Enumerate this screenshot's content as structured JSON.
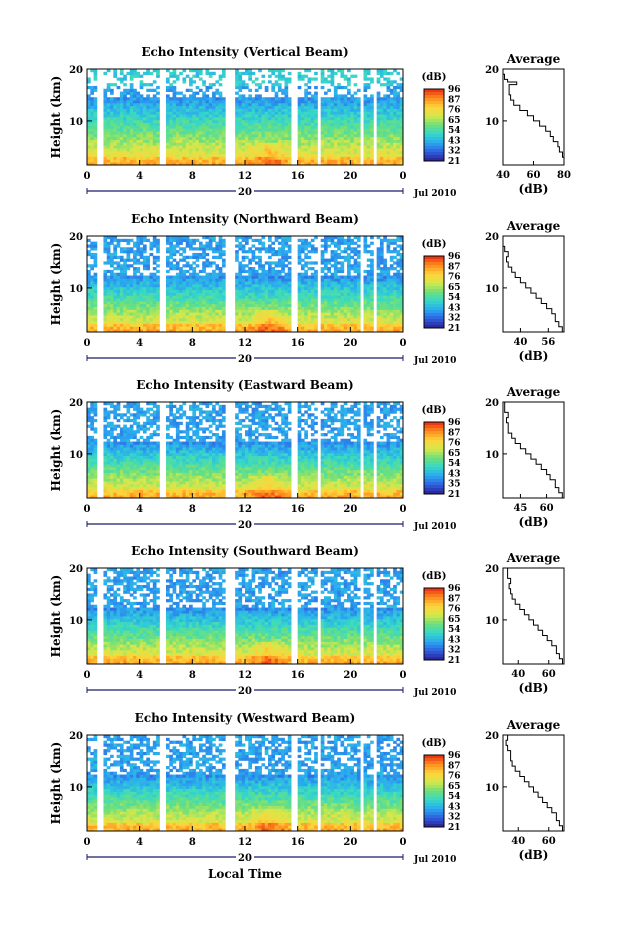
{
  "figure": {
    "xlabel": "Local Time",
    "ylabel": "Height (km)",
    "date_label": "Jul 2010",
    "day_label": "20",
    "colorbar_unit": "(dB)",
    "avg_title": "Average",
    "avg_xlabel": "(dB)",
    "colors": {
      "colormap": [
        "#2b1f8f",
        "#2f5fe0",
        "#2aa8f0",
        "#36d8c8",
        "#6fe07a",
        "#d6e84a",
        "#ffd23a",
        "#ff8a1c",
        "#e62a14"
      ]
    }
  },
  "chart_data": [
    {
      "type": "heatmap",
      "title": "Echo Intensity (Vertical Beam)",
      "xlabel": "Local Time",
      "ylabel": "Height (km)",
      "xlim": [
        0,
        24
      ],
      "ylim": [
        1.5,
        20
      ],
      "x_ticks": [
        "0",
        "4",
        "8",
        "12",
        "16",
        "20",
        "0"
      ],
      "y_ticks": [
        "20",
        "10"
      ],
      "colorbar": {
        "label": "(dB)",
        "ticks": [
          "96",
          "87",
          "76",
          "65",
          "54",
          "43",
          "32",
          "21"
        ]
      },
      "gaps_hours": [
        [
          0.8,
          1.3
        ],
        [
          5.6,
          5.9
        ],
        [
          10.5,
          11.3
        ],
        [
          15.6,
          16.0
        ],
        [
          17.4,
          17.7
        ],
        [
          20.7,
          21.1
        ],
        [
          21.8,
          22.1
        ],
        [
          22.9,
          23.1
        ]
      ],
      "profile": {
        "title": "Average",
        "xlabel": "(dB)",
        "xlim": [
          40,
          80
        ],
        "x_ticks": [
          "40",
          "60",
          "80"
        ],
        "y_ticks": [
          "20",
          "10"
        ],
        "points": [
          [
            1.5,
            80
          ],
          [
            3,
            79
          ],
          [
            4,
            77
          ],
          [
            5,
            76
          ],
          [
            6,
            73
          ],
          [
            7,
            71
          ],
          [
            8,
            68
          ],
          [
            9,
            64
          ],
          [
            10,
            60
          ],
          [
            11,
            56
          ],
          [
            12,
            51
          ],
          [
            13,
            47
          ],
          [
            14,
            45
          ],
          [
            15,
            44
          ],
          [
            16,
            44
          ],
          [
            17,
            49
          ],
          [
            17.5,
            43
          ],
          [
            18,
            41
          ],
          [
            19,
            40
          ],
          [
            20,
            40
          ]
        ]
      }
    },
    {
      "type": "heatmap",
      "title": "Echo Intensity (Northward Beam)",
      "xlabel": "Local Time",
      "ylabel": "Height (km)",
      "xlim": [
        0,
        24
      ],
      "ylim": [
        1.5,
        20
      ],
      "x_ticks": [
        "0",
        "4",
        "8",
        "12",
        "16",
        "20",
        "0"
      ],
      "y_ticks": [
        "20",
        "10"
      ],
      "colorbar": {
        "label": "(dB)",
        "ticks": [
          "96",
          "87",
          "76",
          "65",
          "54",
          "43",
          "32",
          "21"
        ]
      },
      "gaps_hours": [
        [
          0.8,
          1.3
        ],
        [
          5.6,
          5.9
        ],
        [
          10.5,
          11.3
        ],
        [
          15.6,
          16.0
        ],
        [
          17.4,
          17.7
        ],
        [
          20.7,
          21.1
        ],
        [
          21.8,
          22.1
        ],
        [
          22.9,
          23.1
        ]
      ],
      "profile": {
        "title": "Average",
        "xlabel": "(dB)",
        "xlim": [
          30,
          65
        ],
        "x_ticks": [
          "40",
          "56"
        ],
        "y_ticks": [
          "20",
          "10"
        ],
        "points": [
          [
            1.5,
            64
          ],
          [
            2.5,
            62
          ],
          [
            3.5,
            60
          ],
          [
            5,
            58
          ],
          [
            6,
            55
          ],
          [
            7,
            52
          ],
          [
            8,
            49
          ],
          [
            9,
            46
          ],
          [
            10,
            43
          ],
          [
            11,
            40
          ],
          [
            12,
            37
          ],
          [
            13,
            35
          ],
          [
            14,
            33
          ],
          [
            15,
            32
          ],
          [
            16,
            33
          ],
          [
            17,
            31
          ],
          [
            18,
            30
          ],
          [
            19,
            30
          ],
          [
            20,
            31
          ]
        ]
      }
    },
    {
      "type": "heatmap",
      "title": "Echo Intensity (Eastward Beam)",
      "xlabel": "Local Time",
      "ylabel": "Height (km)",
      "xlim": [
        0,
        24
      ],
      "ylim": [
        1.5,
        20
      ],
      "x_ticks": [
        "0",
        "4",
        "8",
        "12",
        "16",
        "20",
        "0"
      ],
      "y_ticks": [
        "20",
        "10"
      ],
      "colorbar": {
        "label": "(dB)",
        "ticks": [
          "96",
          "87",
          "76",
          "65",
          "54",
          "43",
          "35",
          "21"
        ]
      },
      "gaps_hours": [
        [
          0.8,
          1.3
        ],
        [
          5.6,
          5.9
        ],
        [
          10.5,
          11.3
        ],
        [
          15.6,
          16.0
        ],
        [
          17.4,
          17.7
        ],
        [
          20.7,
          21.1
        ],
        [
          21.8,
          22.1
        ],
        [
          22.9,
          23.1
        ]
      ],
      "profile": {
        "title": "Average",
        "xlabel": "(dB)",
        "xlim": [
          35,
          70
        ],
        "x_ticks": [
          "45",
          "60"
        ],
        "y_ticks": [
          "20",
          "10"
        ],
        "points": [
          [
            1.5,
            69
          ],
          [
            2.5,
            67
          ],
          [
            3.5,
            65
          ],
          [
            5,
            62
          ],
          [
            6,
            60
          ],
          [
            7,
            57
          ],
          [
            8,
            54
          ],
          [
            9,
            51
          ],
          [
            10,
            48
          ],
          [
            11,
            45
          ],
          [
            12,
            42
          ],
          [
            13,
            40
          ],
          [
            14,
            38
          ],
          [
            15,
            38
          ],
          [
            16,
            37
          ],
          [
            17,
            38
          ],
          [
            18,
            36
          ],
          [
            19,
            36
          ],
          [
            20,
            37
          ]
        ]
      }
    },
    {
      "type": "heatmap",
      "title": "Echo Intensity (Southward Beam)",
      "xlabel": "Local Time",
      "ylabel": "Height (km)",
      "xlim": [
        0,
        24
      ],
      "ylim": [
        1.5,
        20
      ],
      "x_ticks": [
        "0",
        "4",
        "8",
        "12",
        "16",
        "20",
        "0"
      ],
      "y_ticks": [
        "20",
        "10"
      ],
      "colorbar": {
        "label": "(dB)",
        "ticks": [
          "96",
          "87",
          "76",
          "65",
          "54",
          "43",
          "32",
          "21"
        ]
      },
      "gaps_hours": [
        [
          0.8,
          1.3
        ],
        [
          5.6,
          5.9
        ],
        [
          10.5,
          11.3
        ],
        [
          15.6,
          16.0
        ],
        [
          17.4,
          17.7
        ],
        [
          20.7,
          21.1
        ],
        [
          21.8,
          22.1
        ],
        [
          22.9,
          23.1
        ]
      ],
      "profile": {
        "title": "Average",
        "xlabel": "(dB)",
        "xlim": [
          30,
          70
        ],
        "x_ticks": [
          "40",
          "60"
        ],
        "y_ticks": [
          "20",
          "10"
        ],
        "points": [
          [
            1.5,
            69
          ],
          [
            2.5,
            67
          ],
          [
            3.5,
            65
          ],
          [
            5,
            62
          ],
          [
            6,
            59
          ],
          [
            7,
            56
          ],
          [
            8,
            53
          ],
          [
            9,
            50
          ],
          [
            10,
            47
          ],
          [
            11,
            44
          ],
          [
            12,
            41
          ],
          [
            13,
            38
          ],
          [
            14,
            36
          ],
          [
            15,
            35
          ],
          [
            16,
            34
          ],
          [
            17,
            35
          ],
          [
            18,
            33
          ],
          [
            19,
            33
          ],
          [
            20,
            34
          ]
        ]
      }
    },
    {
      "type": "heatmap",
      "title": "Echo Intensity (Westward Beam)",
      "xlabel": "Local Time",
      "ylabel": "Height (km)",
      "xlim": [
        0,
        24
      ],
      "ylim": [
        1.5,
        20
      ],
      "x_ticks": [
        "0",
        "4",
        "8",
        "12",
        "16",
        "20",
        "0"
      ],
      "y_ticks": [
        "20",
        "10"
      ],
      "colorbar": {
        "label": "(dB)",
        "ticks": [
          "96",
          "87",
          "76",
          "65",
          "54",
          "43",
          "32",
          "21"
        ]
      },
      "gaps_hours": [
        [
          0.8,
          1.3
        ],
        [
          5.6,
          5.9
        ],
        [
          10.5,
          11.3
        ],
        [
          15.6,
          16.0
        ],
        [
          17.4,
          17.7
        ],
        [
          20.7,
          21.1
        ],
        [
          21.8,
          22.1
        ],
        [
          22.9,
          23.1
        ]
      ],
      "profile": {
        "title": "Average",
        "xlabel": "(dB)",
        "xlim": [
          30,
          70
        ],
        "x_ticks": [
          "40",
          "60"
        ],
        "y_ticks": [
          "20",
          "10"
        ],
        "points": [
          [
            1.5,
            69
          ],
          [
            2.5,
            67
          ],
          [
            3.5,
            65
          ],
          [
            5,
            62
          ],
          [
            6,
            59
          ],
          [
            7,
            56
          ],
          [
            8,
            53
          ],
          [
            9,
            50
          ],
          [
            10,
            47
          ],
          [
            11,
            44
          ],
          [
            12,
            41
          ],
          [
            13,
            38
          ],
          [
            14,
            36
          ],
          [
            15,
            35
          ],
          [
            16,
            35
          ],
          [
            17,
            33
          ],
          [
            18,
            32
          ],
          [
            19,
            33
          ],
          [
            20,
            32
          ]
        ]
      }
    }
  ]
}
